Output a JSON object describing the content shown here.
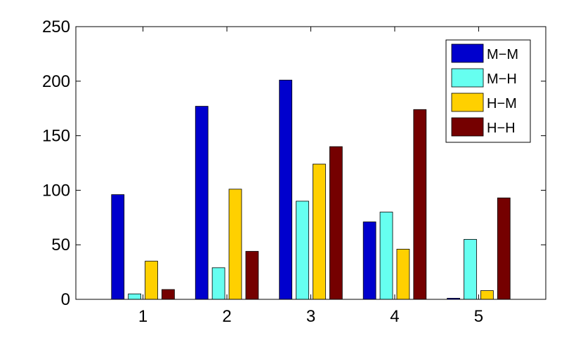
{
  "chart_data": {
    "type": "bar",
    "categories": [
      "1",
      "2",
      "3",
      "4",
      "5"
    ],
    "series": [
      {
        "name": "M−M",
        "color": "#0000cd",
        "values": [
          96,
          177,
          201,
          71,
          1
        ]
      },
      {
        "name": "M−H",
        "color": "#66fff0",
        "values": [
          5,
          29,
          90,
          80,
          55
        ]
      },
      {
        "name": "H−M",
        "color": "#ffd000",
        "values": [
          35,
          101,
          124,
          46,
          8
        ]
      },
      {
        "name": "H−H",
        "color": "#750000",
        "values": [
          9,
          44,
          140,
          174,
          93
        ]
      }
    ],
    "ylim": [
      0,
      250
    ],
    "xlim": [
      0.2,
      5.8
    ],
    "yticks": [
      "0",
      "50",
      "100",
      "150",
      "200",
      "250"
    ],
    "grid": false,
    "legend_position": "top-right"
  }
}
